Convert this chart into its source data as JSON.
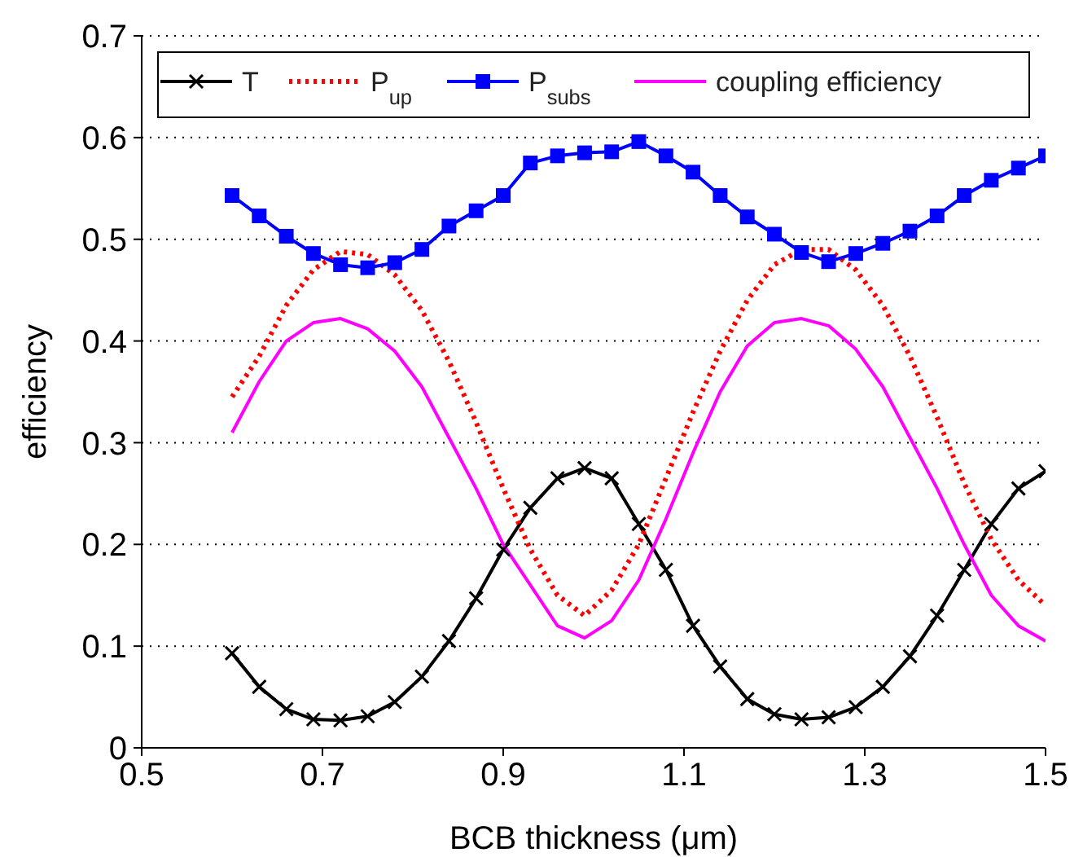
{
  "chart_data": {
    "type": "line",
    "xlabel": "BCB thickness (μm)",
    "ylabel": "efficiency",
    "x": [
      0.6,
      0.63,
      0.66,
      0.69,
      0.72,
      0.75,
      0.78,
      0.81,
      0.84,
      0.87,
      0.9,
      0.93,
      0.96,
      0.99,
      1.02,
      1.05,
      1.08,
      1.11,
      1.14,
      1.17,
      1.2,
      1.23,
      1.26,
      1.29,
      1.32,
      1.35,
      1.38,
      1.41,
      1.44,
      1.47,
      1.5
    ],
    "xlim": [
      0.5,
      1.5
    ],
    "xticks": [
      0.5,
      0.7,
      0.9,
      1.1,
      1.3,
      1.5
    ],
    "ylim": [
      0,
      0.7
    ],
    "yticks": [
      0,
      0.1,
      0.2,
      0.3,
      0.4,
      0.5,
      0.6,
      0.7
    ],
    "grid": "y",
    "legend": "top",
    "series": [
      {
        "name": "T",
        "color": "#000000",
        "marker": "cross",
        "line_style": "solid",
        "values": [
          0.093,
          0.06,
          0.038,
          0.028,
          0.027,
          0.031,
          0.045,
          0.07,
          0.105,
          0.147,
          0.195,
          0.236,
          0.265,
          0.275,
          0.265,
          0.22,
          0.175,
          0.12,
          0.08,
          0.048,
          0.033,
          0.028,
          0.03,
          0.04,
          0.06,
          0.09,
          0.13,
          0.175,
          0.22,
          0.255,
          0.272
        ]
      },
      {
        "name": "P$_{up}$",
        "color": "#ff0000",
        "marker": "none",
        "line_style": "dotted",
        "values": [
          0.345,
          0.385,
          0.435,
          0.47,
          0.488,
          0.485,
          0.465,
          0.43,
          0.38,
          0.32,
          0.255,
          0.195,
          0.15,
          0.13,
          0.155,
          0.2,
          0.265,
          0.33,
          0.39,
          0.44,
          0.475,
          0.49,
          0.49,
          0.47,
          0.435,
          0.385,
          0.325,
          0.26,
          0.205,
          0.165,
          0.14
        ]
      },
      {
        "name": "P$_{subs}$",
        "color": "#0000ff",
        "marker": "square",
        "line_style": "solid",
        "values": [
          0.543,
          0.523,
          0.503,
          0.486,
          0.475,
          0.472,
          0.477,
          0.49,
          0.513,
          0.528,
          0.543,
          0.575,
          0.582,
          0.585,
          0.586,
          0.596,
          0.582,
          0.566,
          0.543,
          0.522,
          0.505,
          0.487,
          0.478,
          0.486,
          0.496,
          0.508,
          0.523,
          0.543,
          0.558,
          0.57,
          0.582
        ]
      },
      {
        "name": "coupling efficiency",
        "color": "#ff00ff",
        "marker": "none",
        "line_style": "solid",
        "values": [
          0.31,
          0.36,
          0.4,
          0.418,
          0.422,
          0.412,
          0.39,
          0.355,
          0.305,
          0.255,
          0.2,
          0.16,
          0.12,
          0.108,
          0.125,
          0.165,
          0.225,
          0.29,
          0.35,
          0.395,
          0.418,
          0.422,
          0.415,
          0.392,
          0.355,
          0.305,
          0.255,
          0.2,
          0.15,
          0.12,
          0.105
        ]
      }
    ]
  }
}
